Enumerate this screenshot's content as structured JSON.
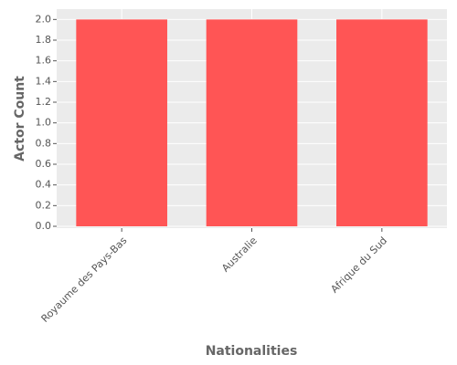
{
  "chart_data": {
    "type": "bar",
    "x_label": "Nationalities",
    "y_label": "Actor Count",
    "categories": [
      "Royaume des Pays-Bas",
      "Australie",
      "Afrique du Sud"
    ],
    "values": [
      2,
      2,
      2
    ],
    "color": "#ff5555",
    "ylim": [
      0,
      2.1
    ],
    "yticks": [
      {
        "value": 0,
        "label": "0.0"
      },
      0.2,
      0.4,
      0.6,
      0.8,
      {
        "value": 1,
        "label": "1.0"
      },
      1.2,
      1.4,
      1.6,
      1.8,
      {
        "value": 2,
        "label": "2.0"
      }
    ],
    "grid": true
  }
}
